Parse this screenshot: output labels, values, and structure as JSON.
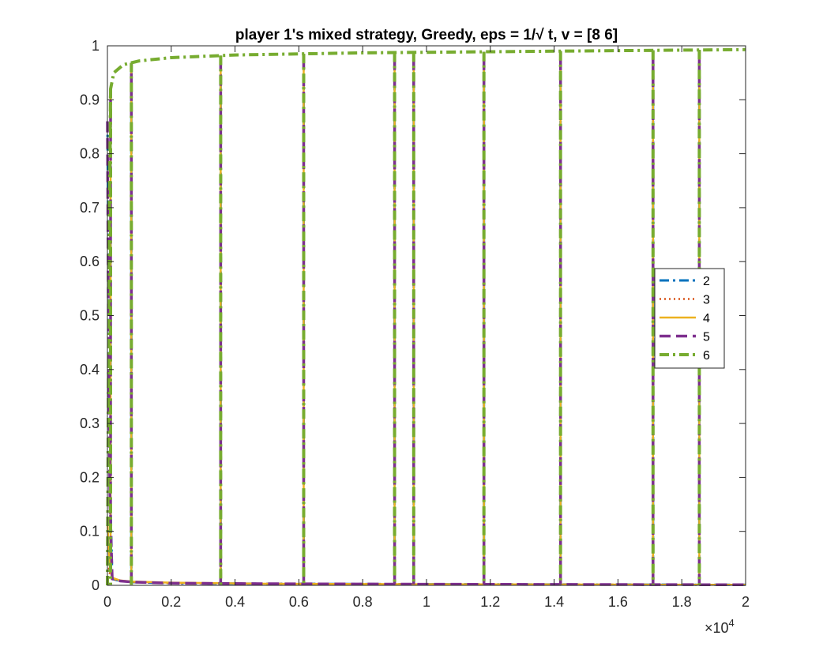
{
  "chart_data": {
    "type": "line",
    "title": "player 1's mixed strategy, Greedy, eps = 1/√ t, v = [8  6]",
    "xlabel": "",
    "ylabel": "",
    "xlim": [
      0,
      20000
    ],
    "ylim": [
      0,
      1
    ],
    "x_exponent_label": "×10",
    "x_exponent_power": "4",
    "x_ticks": [
      0,
      2000,
      4000,
      6000,
      8000,
      10000,
      12000,
      14000,
      16000,
      18000,
      20000
    ],
    "x_tick_labels": [
      "0",
      "0.2",
      "0.4",
      "0.6",
      "0.8",
      "1",
      "1.2",
      "1.4",
      "1.6",
      "1.8",
      "2"
    ],
    "y_ticks": [
      0,
      0.1,
      0.2,
      0.3,
      0.4,
      0.5,
      0.6,
      0.7,
      0.8,
      0.9,
      1
    ],
    "y_tick_labels": [
      "0",
      "0.1",
      "0.2",
      "0.3",
      "0.4",
      "0.5",
      "0.6",
      "0.7",
      "0.8",
      "0.9",
      "1"
    ],
    "grid": false,
    "legend_position": "right",
    "switch_times": [
      100,
      750,
      3550,
      6150,
      9000,
      9600,
      11800,
      14200,
      17100,
      18550
    ],
    "series": [
      {
        "name": "2",
        "color": "#0072BD",
        "style": "dash-dot",
        "x": [
          0,
          30,
          80,
          150,
          400,
          800,
          2000,
          5000,
          10000,
          20000
        ],
        "y": [
          0.86,
          0.6,
          0.2,
          0.012,
          0.008,
          0.006,
          0.004,
          0.003,
          0.002,
          0.001
        ]
      },
      {
        "name": "3",
        "color": "#D95319",
        "style": "dotted",
        "x": [
          0,
          30,
          80,
          150,
          400,
          800,
          2000,
          5000,
          10000,
          20000
        ],
        "y": [
          0.05,
          0.04,
          0.02,
          0.012,
          0.008,
          0.006,
          0.004,
          0.003,
          0.002,
          0.001
        ]
      },
      {
        "name": "4",
        "color": "#EDB120",
        "style": "solid",
        "x": [
          0,
          30,
          80,
          150,
          400,
          800,
          2000,
          5000,
          10000,
          20000
        ],
        "y": [
          0.12,
          0.08,
          0.03,
          0.014,
          0.009,
          0.007,
          0.005,
          0.003,
          0.002,
          0.001
        ]
      },
      {
        "name": "5",
        "color": "#7E2F8E",
        "style": "dashed",
        "x": [
          0,
          30,
          80,
          150,
          400,
          800,
          2000,
          5000,
          10000,
          20000
        ],
        "y": [
          0.86,
          0.5,
          0.15,
          0.012,
          0.008,
          0.006,
          0.004,
          0.003,
          0.002,
          0.001
        ]
      },
      {
        "name": "6",
        "color": "#77AC30",
        "style": "dash-dot",
        "x": [
          0,
          50,
          100,
          200,
          500,
          1000,
          2000,
          4000,
          8000,
          12000,
          16000,
          20000
        ],
        "y": [
          0.0,
          0.6,
          0.92,
          0.95,
          0.965,
          0.972,
          0.978,
          0.983,
          0.987,
          0.989,
          0.991,
          0.993
        ]
      }
    ]
  }
}
